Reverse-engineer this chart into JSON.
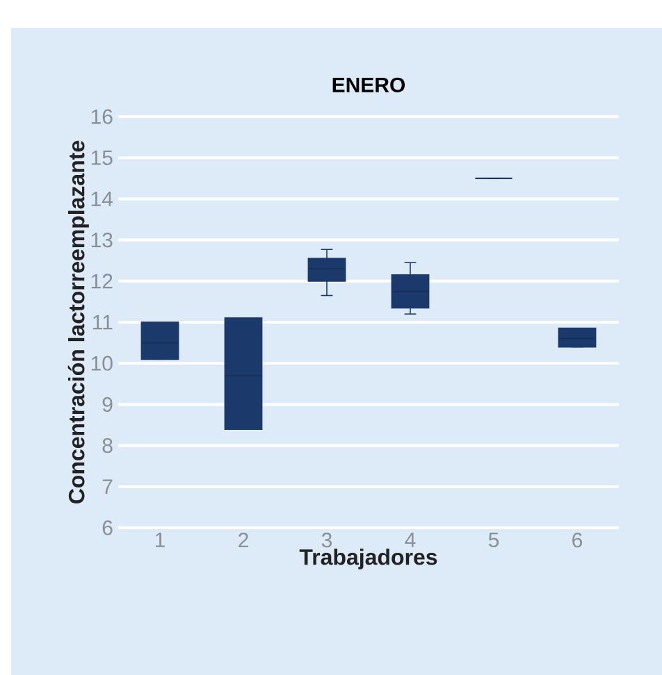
{
  "chart_data": {
    "type": "box",
    "title": "ENERO",
    "xlabel": "Trabajadores",
    "ylabel": "Concentración lactorreemplazante",
    "categories": [
      "1",
      "2",
      "3",
      "4",
      "5",
      "6"
    ],
    "boxes": [
      {
        "low": 10.1,
        "q1": 10.1,
        "median": 10.5,
        "q3": 11.0,
        "high": 11.0
      },
      {
        "low": 8.4,
        "q1": 8.4,
        "median": 9.7,
        "q3": 11.1,
        "high": 11.1
      },
      {
        "low": 11.65,
        "q1": 12.0,
        "median": 12.3,
        "q3": 12.55,
        "high": 12.77
      },
      {
        "low": 11.2,
        "q1": 11.35,
        "median": 11.75,
        "q3": 12.15,
        "high": 12.45
      },
      {
        "low": 14.5,
        "q1": 14.5,
        "median": 14.5,
        "q3": 14.5,
        "high": 14.5
      },
      {
        "low": 10.4,
        "q1": 10.4,
        "median": 10.6,
        "q3": 10.85,
        "high": 10.85
      }
    ],
    "color": "#1b3a6b",
    "ylim": [
      6,
      16
    ],
    "yticks": [
      6,
      7,
      8,
      9,
      10,
      11,
      12,
      13,
      14,
      15,
      16
    ],
    "grid": "y"
  }
}
